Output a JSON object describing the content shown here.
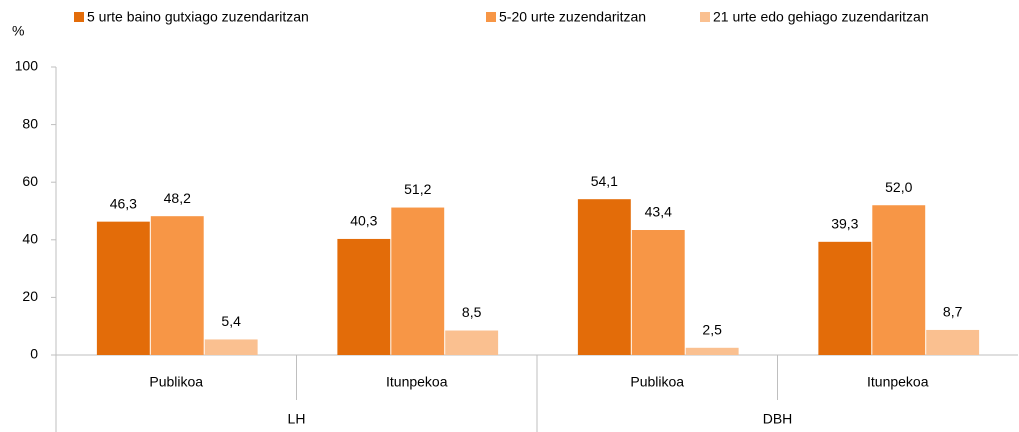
{
  "chart_data": {
    "type": "bar",
    "y_label": "%",
    "groups": [
      {
        "name": "LH",
        "categories": [
          "Publikoa",
          "Itunpekoa"
        ]
      },
      {
        "name": "DBH",
        "categories": [
          "Publikoa",
          "Itunpekoa"
        ]
      }
    ],
    "series": [
      {
        "name": "5 urte baino gutxiago zuzendaritzan",
        "color": "#e36c09",
        "values": [
          46.3,
          40.3,
          54.1,
          39.3
        ],
        "value_labels": [
          "46,3",
          "40,3",
          "54,1",
          "39,3"
        ]
      },
      {
        "name": "5-20 urte zuzendaritzan",
        "color": "#f79646",
        "values": [
          48.2,
          51.2,
          43.4,
          52.0
        ],
        "value_labels": [
          "48,2",
          "51,2",
          "43,4",
          "52,0"
        ]
      },
      {
        "name": "21 urte edo gehiago zuzendaritzan",
        "color": "#fac090",
        "values": [
          5.4,
          8.5,
          2.5,
          8.7
        ],
        "value_labels": [
          "5,4",
          "8,5",
          "2,5",
          "8,7"
        ]
      }
    ],
    "ylim": [
      0,
      100
    ],
    "yticks": [
      0,
      20,
      40,
      60,
      80,
      100
    ],
    "grid": false
  }
}
